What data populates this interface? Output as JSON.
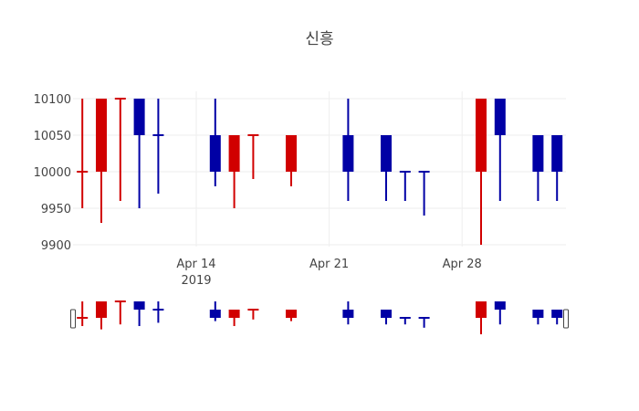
{
  "chart_data": {
    "type": "candlestick",
    "title": "신흥",
    "xlabel": "",
    "ylabel": "",
    "ylim": [
      9900,
      10100
    ],
    "yticks": [
      9900,
      9950,
      10000,
      10050,
      10100
    ],
    "xticks": [
      {
        "date": "2019-04-14",
        "label": "Apr 14",
        "sublabel": "2019"
      },
      {
        "date": "2019-04-21",
        "label": "Apr 21",
        "sublabel": ""
      },
      {
        "date": "2019-04-28",
        "label": "Apr 28",
        "sublabel": ""
      }
    ],
    "grid": true,
    "legend": "none",
    "rangeslider": true,
    "increasing_color": "#0000a5",
    "decreasing_color": "#d10000",
    "candles": [
      {
        "date": "2019-04-08",
        "open": 10000,
        "high": 10100,
        "low": 9950,
        "close": 10000,
        "dir": "dec"
      },
      {
        "date": "2019-04-09",
        "open": 10100,
        "high": 10100,
        "low": 9930,
        "close": 10000,
        "dir": "dec"
      },
      {
        "date": "2019-04-10",
        "open": 10100,
        "high": 10100,
        "low": 9960,
        "close": 10100,
        "dir": "dec"
      },
      {
        "date": "2019-04-11",
        "open": 10050,
        "high": 10100,
        "low": 9950,
        "close": 10100,
        "dir": "inc"
      },
      {
        "date": "2019-04-12",
        "open": 10050,
        "high": 10100,
        "low": 9970,
        "close": 10050,
        "dir": "inc"
      },
      {
        "date": "2019-04-15",
        "open": 10000,
        "high": 10100,
        "low": 9980,
        "close": 10050,
        "dir": "inc"
      },
      {
        "date": "2019-04-16",
        "open": 10050,
        "high": 10050,
        "low": 9950,
        "close": 10000,
        "dir": "dec"
      },
      {
        "date": "2019-04-17",
        "open": 10050,
        "high": 10050,
        "low": 9990,
        "close": 10050,
        "dir": "dec"
      },
      {
        "date": "2019-04-19",
        "open": 10050,
        "high": 10050,
        "low": 9980,
        "close": 10000,
        "dir": "dec"
      },
      {
        "date": "2019-04-22",
        "open": 10000,
        "high": 10100,
        "low": 9960,
        "close": 10050,
        "dir": "inc"
      },
      {
        "date": "2019-04-24",
        "open": 10000,
        "high": 10050,
        "low": 9960,
        "close": 10050,
        "dir": "inc"
      },
      {
        "date": "2019-04-25",
        "open": 10000,
        "high": 10000,
        "low": 9960,
        "close": 10000,
        "dir": "inc"
      },
      {
        "date": "2019-04-26",
        "open": 10000,
        "high": 10000,
        "low": 9940,
        "close": 10000,
        "dir": "inc"
      },
      {
        "date": "2019-04-29",
        "open": 10100,
        "high": 10100,
        "low": 9900,
        "close": 10000,
        "dir": "dec"
      },
      {
        "date": "2019-04-30",
        "open": 10050,
        "high": 10100,
        "low": 9960,
        "close": 10100,
        "dir": "inc"
      },
      {
        "date": "2019-05-02",
        "open": 10000,
        "high": 10050,
        "low": 9960,
        "close": 10050,
        "dir": "inc"
      },
      {
        "date": "2019-05-03",
        "open": 10000,
        "high": 10050,
        "low": 9960,
        "close": 10050,
        "dir": "inc"
      }
    ]
  }
}
